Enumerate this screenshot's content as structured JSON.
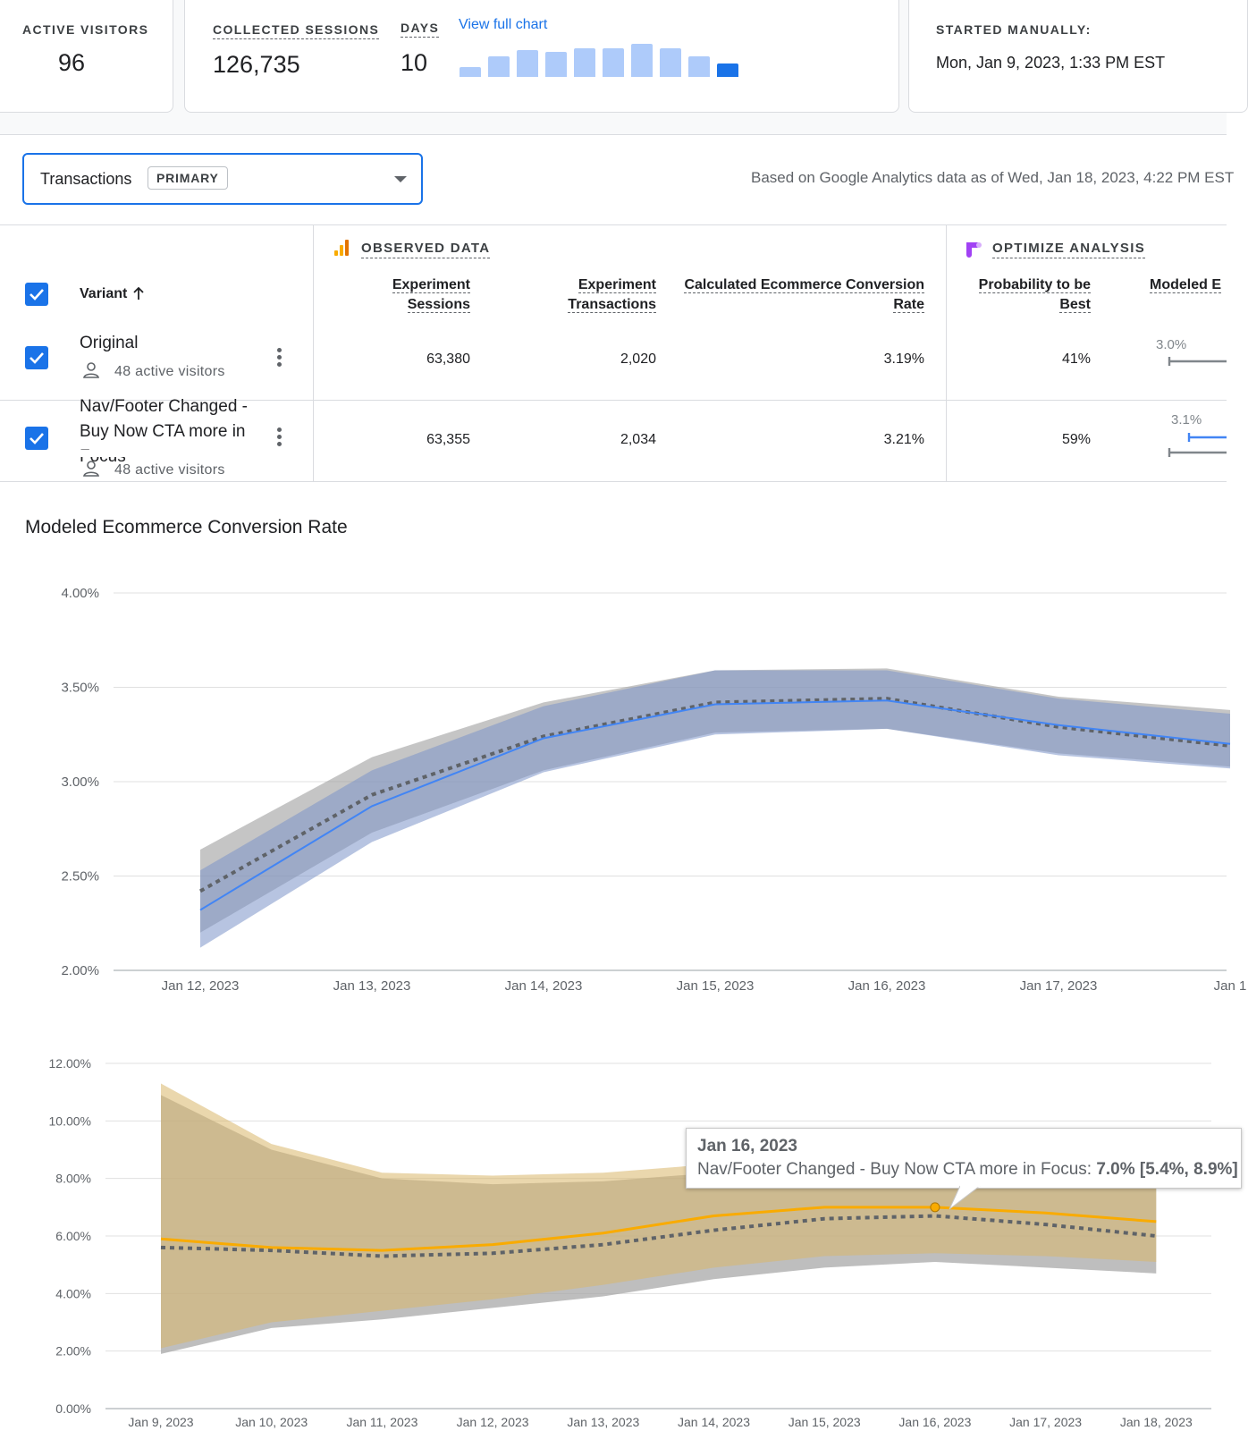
{
  "stats": {
    "active_visitors_label": "ACTIVE VISITORS",
    "active_visitors": "96",
    "collected_sessions_label": "COLLECTED SESSIONS",
    "collected_sessions": "126,735",
    "days_label": "DAYS",
    "days": "10",
    "view_full_chart": "View full chart",
    "daily_sessions_relative": [
      0.27,
      0.57,
      0.75,
      0.7,
      0.79,
      0.79,
      0.92,
      0.8,
      0.58,
      0.37
    ],
    "started_label": "STARTED MANUALLY:",
    "started_value": "Mon, Jan 9, 2023, 1:33 PM EST"
  },
  "metric_selector": {
    "label": "Transactions",
    "chip": "PRIMARY",
    "caret_icon": "caret-down-icon"
  },
  "data_note": "Based on Google Analytics data as of Wed, Jan 18, 2023, 4:22 PM EST",
  "table": {
    "observed_title": "OBSERVED DATA",
    "analysis_title": "OPTIMIZE ANALYSIS",
    "variant_header": "Variant",
    "headers": {
      "sessions_1": "Experiment",
      "sessions_2": "Sessions",
      "transactions_1": "Experiment",
      "transactions_2": "Transactions",
      "conv_rate_1": "Calculated Ecommerce Conversion",
      "conv_rate_2": "Rate",
      "prob_1": "Probability to be",
      "prob_2": "Best",
      "modeled": "Modeled E"
    },
    "rows": [
      {
        "name": "Original",
        "visitors": "48 active visitors",
        "sessions": "63,380",
        "transactions": "2,020",
        "conv_rate": "3.19%",
        "probability": "41%",
        "modeled_low": "3.0%"
      },
      {
        "name": "Nav/Footer Changed - Buy Now CTA more in Focus",
        "visitors": "48 active visitors",
        "sessions": "63,355",
        "transactions": "2,034",
        "conv_rate": "3.21%",
        "probability": "59%",
        "modeled_low": "3.1%"
      }
    ]
  },
  "chart_data": [
    {
      "type": "line",
      "title": "Modeled Ecommerce Conversion Rate",
      "x": [
        "Jan 12, 2023",
        "Jan 13, 2023",
        "Jan 14, 2023",
        "Jan 15, 2023",
        "Jan 16, 2023",
        "Jan 17, 2023",
        "Jan 1"
      ],
      "ylim": [
        2.0,
        4.0
      ],
      "yticks": [
        "2.00%",
        "2.50%",
        "3.00%",
        "3.50%",
        "4.00%"
      ],
      "series": [
        {
          "name": "Original",
          "style": "dotted",
          "color": "#5f6368",
          "values": [
            2.42,
            2.93,
            3.24,
            3.42,
            3.44,
            3.29,
            3.19
          ],
          "lower": [
            2.2,
            2.73,
            3.06,
            3.26,
            3.28,
            3.15,
            3.08
          ],
          "upper": [
            2.64,
            3.13,
            3.42,
            3.59,
            3.6,
            3.45,
            3.38
          ]
        },
        {
          "name": "Nav/Footer Changed - Buy Now CTA more in Focus",
          "style": "solid",
          "color": "#4285f4",
          "values": [
            2.32,
            2.87,
            3.23,
            3.41,
            3.43,
            3.3,
            3.2
          ],
          "lower": [
            2.12,
            2.68,
            3.05,
            3.25,
            3.28,
            3.14,
            3.07
          ],
          "upper": [
            2.53,
            3.06,
            3.4,
            3.59,
            3.59,
            3.44,
            3.36
          ]
        }
      ]
    },
    {
      "type": "line",
      "title": "",
      "x": [
        "Jan 9, 2023",
        "Jan 10, 2023",
        "Jan 11, 2023",
        "Jan 12, 2023",
        "Jan 13, 2023",
        "Jan 14, 2023",
        "Jan 15, 2023",
        "Jan 16, 2023",
        "Jan 17, 2023",
        "Jan 18, 2023"
      ],
      "ylim": [
        0,
        12
      ],
      "yticks": [
        "0.00%",
        "2.00%",
        "4.00%",
        "6.00%",
        "8.00%",
        "10.00%",
        "12.00%"
      ],
      "series": [
        {
          "name": "Original",
          "style": "dotted",
          "color": "#5f6368",
          "values": [
            5.6,
            5.5,
            5.3,
            5.4,
            5.7,
            6.2,
            6.6,
            6.7,
            6.4,
            6.0
          ],
          "lower": [
            1.9,
            2.8,
            3.1,
            3.5,
            3.9,
            4.5,
            4.9,
            5.1,
            4.9,
            4.7
          ],
          "upper": [
            10.9,
            9.0,
            8.0,
            7.8,
            7.9,
            8.2,
            8.5,
            8.6,
            8.3,
            7.8
          ]
        },
        {
          "name": "Nav/Footer Changed - Buy Now CTA more in Focus",
          "style": "solid",
          "color": "#f9ab00",
          "values": [
            5.9,
            5.6,
            5.5,
            5.7,
            6.1,
            6.7,
            7.0,
            7.0,
            6.8,
            6.5
          ],
          "lower": [
            2.1,
            3.0,
            3.4,
            3.8,
            4.3,
            4.9,
            5.3,
            5.4,
            5.3,
            5.1
          ],
          "upper": [
            11.3,
            9.2,
            8.2,
            8.1,
            8.2,
            8.5,
            8.8,
            8.9,
            8.6,
            8.0
          ]
        }
      ],
      "tooltip": {
        "date": "Jan 16, 2023",
        "series": "Nav/Footer Changed - Buy Now CTA more in Focus:",
        "value": "7.0% [5.4%, 8.9%]"
      }
    }
  ]
}
